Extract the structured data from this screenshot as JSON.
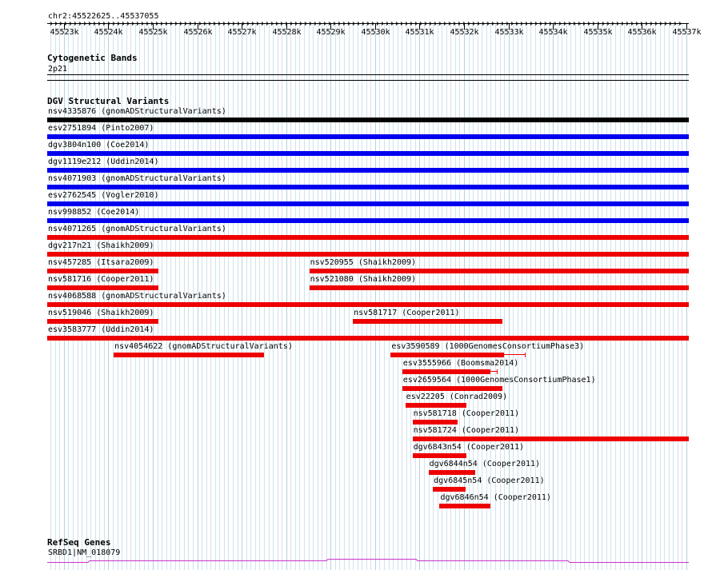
{
  "location": "chr2:45522625..45537055",
  "ruler": {
    "start": 45522625,
    "end": 45537055,
    "ticks": [
      "45523k",
      "45524k",
      "45525k",
      "45526k",
      "45527k",
      "45528k",
      "45529k",
      "45530k",
      "45531k",
      "45532k",
      "45533k",
      "45534k",
      "45535k",
      "45536k",
      "45537k"
    ]
  },
  "cytoband": {
    "title": "Cytogenetic Bands",
    "band": "2p21"
  },
  "dgv": {
    "title": "DGV Structural Variants",
    "colors": {
      "gain": "#0000ee",
      "loss": "#ee0000",
      "both": "#000000"
    },
    "features": [
      {
        "label": "nsv4335876 (gnomADStructuralVariants)",
        "start": 45522625,
        "end": 45537055,
        "type": "both"
      },
      {
        "label": "esv2751894 (Pinto2007)",
        "start": 45522625,
        "end": 45537055,
        "type": "gain"
      },
      {
        "label": "dgv3804n100 (Coe2014)",
        "start": 45522625,
        "end": 45537055,
        "type": "gain"
      },
      {
        "label": "dgv1119e212 (Uddin2014)",
        "start": 45522625,
        "end": 45537055,
        "type": "gain"
      },
      {
        "label": "nsv4071903 (gnomADStructuralVariants)",
        "start": 45522625,
        "end": 45537055,
        "type": "gain"
      },
      {
        "label": "esv2762545 (Vogler2010)",
        "start": 45522625,
        "end": 45537055,
        "type": "gain"
      },
      {
        "label": "nsv998852 (Coe2014)",
        "start": 45522625,
        "end": 45537055,
        "type": "gain"
      },
      {
        "label": "nsv4071265 (gnomADStructuralVariants)",
        "start": 45522625,
        "end": 45537055,
        "type": "loss"
      },
      {
        "label": "dgv217n21 (Shaikh2009)",
        "start": 45522625,
        "end": 45537055,
        "type": "loss"
      },
      {
        "label": "nsv457285 (Itsara2009)",
        "start": 45522625,
        "end": 45525120,
        "type": "loss"
      },
      {
        "label": "nsv520955 (Shaikh2009)",
        "start": 45528520,
        "end": 45537055,
        "type": "loss"
      },
      {
        "label": "nsv581716 (Cooper2011)",
        "start": 45522625,
        "end": 45525120,
        "type": "loss"
      },
      {
        "label": "nsv521080 (Shaikh2009)",
        "start": 45528520,
        "end": 45537055,
        "type": "loss"
      },
      {
        "label": "nsv4068588 (gnomADStructuralVariants)",
        "start": 45522625,
        "end": 45537055,
        "type": "loss"
      },
      {
        "label": "nsv519046 (Shaikh2009)",
        "start": 45522625,
        "end": 45525120,
        "type": "loss"
      },
      {
        "label": "nsv581717 (Cooper2011)",
        "start": 45529500,
        "end": 45532860,
        "type": "loss"
      },
      {
        "label": "esv3583777 (Uddin2014)",
        "start": 45522625,
        "end": 45537055,
        "type": "loss"
      },
      {
        "label": "nsv4054622 (gnomADStructuralVariants)",
        "start": 45524120,
        "end": 45527500,
        "type": "loss"
      },
      {
        "label": "esv3590589 (1000GenomesConsortiumPhase3)",
        "start": 45530350,
        "end": 45532900,
        "type": "loss",
        "ci_start": 45530350,
        "ci_end": 45533380
      },
      {
        "label": "esv3555966 (Boomsma2014)",
        "start": 45530610,
        "end": 45532600,
        "type": "loss",
        "ci_start": 45530610,
        "ci_end": 45532750
      },
      {
        "label": "esv2659564 (1000GenomesConsortiumPhase1)",
        "start": 45530610,
        "end": 45532860,
        "type": "loss"
      },
      {
        "label": "esv22205 (Conrad2009)",
        "start": 45530680,
        "end": 45532050,
        "type": "loss"
      },
      {
        "label": "nsv581718 (Cooper2011)",
        "start": 45530840,
        "end": 45531850,
        "type": "loss"
      },
      {
        "label": "nsv581724 (Cooper2011)",
        "start": 45530840,
        "end": 45537055,
        "type": "loss"
      },
      {
        "label": "dgv6843n54 (Cooper2011)",
        "start": 45530840,
        "end": 45532050,
        "type": "loss"
      },
      {
        "label": "dgv6844n54 (Cooper2011)",
        "start": 45531200,
        "end": 45532260,
        "type": "loss"
      },
      {
        "label": "dgv6845n54 (Cooper2011)",
        "start": 45531300,
        "end": 45532030,
        "type": "loss"
      },
      {
        "label": "dgv6846n54 (Cooper2011)",
        "start": 45531450,
        "end": 45532600,
        "type": "loss"
      }
    ]
  },
  "refseq": {
    "title": "RefSeq Genes",
    "gene": "SRBD1|NM_018079",
    "color": "#cc33cc"
  }
}
